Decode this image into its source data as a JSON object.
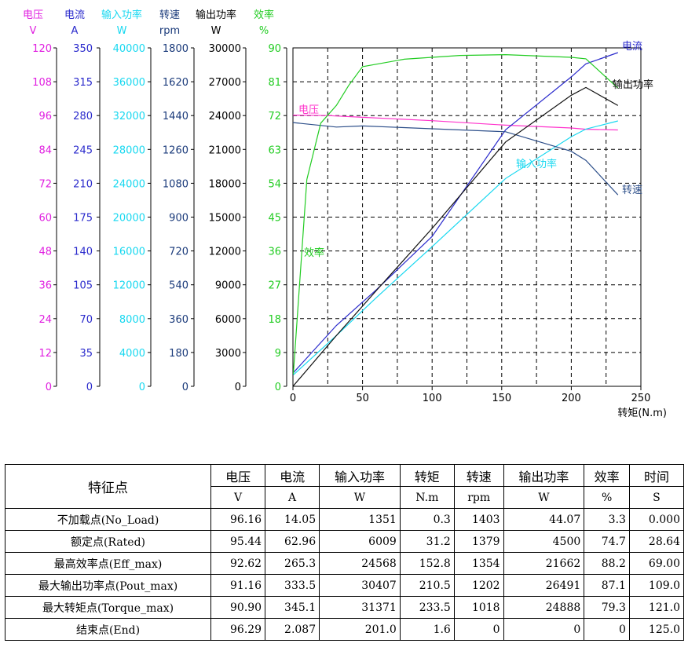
{
  "chart_data": {
    "type": "line",
    "xlabel": "转矩(N.m)",
    "xlim": [
      0,
      250
    ],
    "xticks": [
      0,
      50,
      100,
      150,
      200,
      250
    ],
    "grid": true,
    "axes": [
      {
        "name": "电压",
        "unit": "V",
        "color": "#e020e0",
        "ticks": [
          "0",
          "12",
          "24",
          "36",
          "48",
          "60",
          "72",
          "84",
          "96",
          "108",
          "120"
        ]
      },
      {
        "name": "电流",
        "unit": "A",
        "color": "#2a2acc",
        "ticks": [
          "0",
          "35",
          "70",
          "105",
          "140",
          "175",
          "210",
          "245",
          "280",
          "315",
          "350"
        ]
      },
      {
        "name": "输入功率",
        "unit": "W",
        "color": "#18d8f0",
        "ticks": [
          "0",
          "4000",
          "8000",
          "12000",
          "16000",
          "20000",
          "24000",
          "28000",
          "32000",
          "36000",
          "40000"
        ]
      },
      {
        "name": "转速",
        "unit": "rpm",
        "color": "#1a3a7a",
        "ticks": [
          "0",
          "180",
          "360",
          "540",
          "720",
          "900",
          "1080",
          "1260",
          "1440",
          "1620",
          "1800"
        ]
      },
      {
        "name": "输出功率",
        "unit": "W",
        "color": "#000000",
        "ticks": [
          "0",
          "3000",
          "6000",
          "9000",
          "12000",
          "15000",
          "18000",
          "21000",
          "24000",
          "27000",
          "30000"
        ]
      },
      {
        "name": "效率",
        "unit": "%",
        "color": "#22cc22",
        "ticks": [
          "0",
          "9",
          "18",
          "27",
          "36",
          "45",
          "54",
          "63",
          "72",
          "81",
          "90"
        ]
      }
    ],
    "series": [
      {
        "name": "电压",
        "axis": 0,
        "color": "#ff33cc",
        "x": [
          0,
          25,
          50,
          100,
          152.8,
          200,
          210.5,
          233.5
        ],
        "y": [
          96.16,
          96.0,
          95.4,
          94.2,
          92.6,
          91.6,
          91.16,
          90.9
        ]
      },
      {
        "name": "电流",
        "axis": 1,
        "color": "#2a2acc",
        "x": [
          0.3,
          31.2,
          60,
          100,
          152.8,
          200,
          210.5,
          233.5
        ],
        "y": [
          14.05,
          62.96,
          100,
          155,
          265.3,
          320,
          333.5,
          345.1
        ]
      },
      {
        "name": "输入功率",
        "axis": 2,
        "color": "#18d8f0",
        "x": [
          0.3,
          31.2,
          60,
          100,
          152.8,
          200,
          210.5,
          233.5
        ],
        "y": [
          1351,
          6009,
          10500,
          16500,
          24568,
          29500,
          30407,
          31371
        ]
      },
      {
        "name": "转速",
        "axis": 3,
        "color": "#2d4f8a",
        "x": [
          0,
          31.2,
          50,
          100,
          152.8,
          200,
          210.5,
          233.5
        ],
        "y": [
          1403,
          1379,
          1385,
          1370,
          1354,
          1250,
          1202,
          1018
        ]
      },
      {
        "name": "输出功率",
        "axis": 4,
        "color": "#111111",
        "x": [
          0.3,
          31.2,
          60,
          100,
          152.8,
          200,
          210.5,
          233.5
        ],
        "y": [
          44.07,
          4500,
          8500,
          14000,
          21662,
          25800,
          26491,
          24888
        ]
      },
      {
        "name": "效率",
        "axis": 5,
        "color": "#22cc22",
        "x": [
          0.3,
          10,
          20,
          31.2,
          40,
          50,
          80,
          120,
          152.8,
          200,
          210.5,
          233.5
        ],
        "y": [
          3.3,
          55,
          70,
          74.7,
          80,
          85,
          87,
          88,
          88.2,
          87.5,
          87.1,
          79.3
        ]
      }
    ]
  },
  "table": {
    "corner": "特征点",
    "headers": [
      "电压",
      "电流",
      "输入功率",
      "转矩",
      "转速",
      "输出功率",
      "效率",
      "时间"
    ],
    "units": [
      "V",
      "A",
      "W",
      "N.m",
      "rpm",
      "W",
      "%",
      "S"
    ],
    "rows": [
      {
        "name": "不加载点(No_Load)",
        "values": [
          "96.16",
          "14.05",
          "1351",
          "0.3",
          "1403",
          "44.07",
          "3.3",
          "0.000"
        ]
      },
      {
        "name": "额定点(Rated)",
        "values": [
          "95.44",
          "62.96",
          "6009",
          "31.2",
          "1379",
          "4500",
          "74.7",
          "28.64"
        ]
      },
      {
        "name": "最高效率点(Eff_max)",
        "values": [
          "92.62",
          "265.3",
          "24568",
          "152.8",
          "1354",
          "21662",
          "88.2",
          "69.00"
        ]
      },
      {
        "name": "最大输出功率点(Pout_max)",
        "values": [
          "91.16",
          "333.5",
          "30407",
          "210.5",
          "1202",
          "26491",
          "87.1",
          "109.0"
        ]
      },
      {
        "name": "最大转矩点(Torque_max)",
        "values": [
          "90.90",
          "345.1",
          "31371",
          "233.5",
          "1018",
          "24888",
          "79.3",
          "121.0"
        ]
      },
      {
        "name": "结束点(End)",
        "values": [
          "96.29",
          "2.087",
          "201.0",
          "1.6",
          "0",
          "0",
          "0",
          "125.0"
        ]
      }
    ]
  }
}
